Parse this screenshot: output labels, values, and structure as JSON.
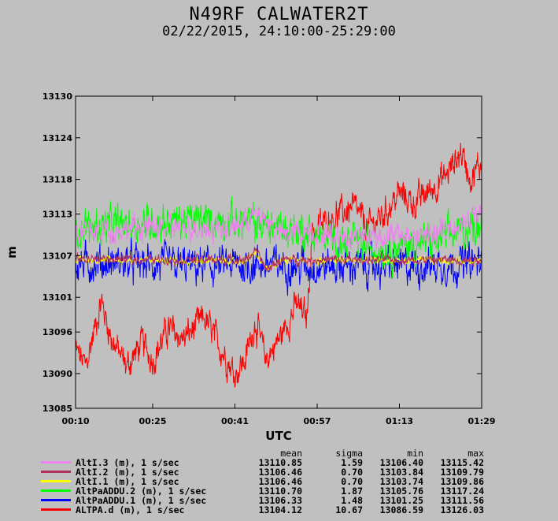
{
  "header": {
    "title": "N49RF CALWATER2T",
    "subtitle": "02/22/2015, 24:10:00-25:29:00"
  },
  "stats_headers": [
    "mean",
    "sigma",
    "min",
    "max"
  ],
  "colors": {
    "background": "#c0c0c0",
    "plot_background": "#c0c0c0"
  },
  "chart_data": {
    "type": "line",
    "title": "N49RF CALWATER2T",
    "subtitle": "02/22/2015, 24:10:00-25:29:00",
    "xlabel": "UTC",
    "ylabel": "m",
    "xlim_minutes": [
      10,
      89
    ],
    "ylim": [
      13085,
      13130
    ],
    "x_ticks": [
      "00:10",
      "00:25",
      "00:41",
      "00:57",
      "01:13",
      "01:29"
    ],
    "y_ticks": [
      "13085",
      "13090",
      "13096",
      "13101",
      "13107",
      "13113",
      "13118",
      "13124",
      "13130"
    ],
    "grid": false,
    "legend_position": "bottom",
    "series": [
      {
        "name": "AltI.3 (m), 1 s/sec",
        "color": "#ee82ee",
        "mean": "13110.85",
        "sigma": "1.59",
        "min": "13106.40",
        "max": "13115.42",
        "profile": [
          [
            10,
            13110.5
          ],
          [
            20,
            13110.8
          ],
          [
            30,
            13111.2
          ],
          [
            40,
            13111.0
          ],
          [
            45,
            13112.8
          ],
          [
            47,
            13112.3
          ],
          [
            50,
            13110.0
          ],
          [
            56,
            13110.8
          ],
          [
            60,
            13109.8
          ],
          [
            70,
            13109.8
          ],
          [
            80,
            13110.0
          ],
          [
            89,
            13113.0
          ]
        ]
      },
      {
        "name": "AltI.2 (m), 1 s/sec",
        "color": "#b03060",
        "mean": "13106.46",
        "sigma": "0.70",
        "min": "13103.84",
        "max": "13109.79",
        "profile": [
          [
            10,
            13106.5
          ],
          [
            43,
            13106.4
          ],
          [
            45,
            13107.8
          ],
          [
            47,
            13105.0
          ],
          [
            50,
            13106.4
          ],
          [
            89,
            13106.4
          ]
        ]
      },
      {
        "name": "AltI.1 (m), 1 s/sec",
        "color": "#ffff00",
        "mean": "13106.46",
        "sigma": "0.70",
        "min": "13103.74",
        "max": "13109.86",
        "profile": [
          [
            10,
            13106.4
          ],
          [
            43,
            13106.3
          ],
          [
            45,
            13107.6
          ],
          [
            47,
            13104.8
          ],
          [
            50,
            13106.3
          ],
          [
            89,
            13106.3
          ]
        ]
      },
      {
        "name": "AltPaADDU.2 (m), 1 s/sec",
        "color": "#00ff00",
        "mean": "13110.70",
        "sigma": "1.87",
        "min": "13105.76",
        "max": "13117.24",
        "profile": [
          [
            10,
            13111.0
          ],
          [
            20,
            13111.5
          ],
          [
            30,
            13112.0
          ],
          [
            40,
            13112.0
          ],
          [
            47,
            13111.5
          ],
          [
            55,
            13110.5
          ],
          [
            60,
            13109.3
          ],
          [
            70,
            13108.0
          ],
          [
            80,
            13109.0
          ],
          [
            89,
            13112.0
          ]
        ]
      },
      {
        "name": "AltPaADDU.1 (m), 1 s/sec",
        "color": "#0000ff",
        "mean": "13106.33",
        "sigma": "1.48",
        "min": "13101.25",
        "max": "13111.56",
        "profile": [
          [
            10,
            13105.8
          ],
          [
            20,
            13106.0
          ],
          [
            30,
            13105.5
          ],
          [
            40,
            13105.5
          ],
          [
            47,
            13105.8
          ],
          [
            55,
            13105.5
          ],
          [
            65,
            13105.6
          ],
          [
            75,
            13105.5
          ],
          [
            89,
            13106.0
          ]
        ]
      },
      {
        "name": "ALTPA.d (m), 1 s/sec",
        "color": "#ff0000",
        "mean": "13104.12",
        "sigma": "10.67",
        "min": "13086.59",
        "max": "13126.03",
        "profile": [
          [
            10,
            13093.5
          ],
          [
            12,
            13091.0
          ],
          [
            15,
            13100.5
          ],
          [
            17,
            13095.0
          ],
          [
            20,
            13091.0
          ],
          [
            23,
            13094.5
          ],
          [
            25,
            13092.0
          ],
          [
            28,
            13096.5
          ],
          [
            31,
            13095.0
          ],
          [
            35,
            13098.0
          ],
          [
            38,
            13094.0
          ],
          [
            41,
            13090.0
          ],
          [
            43,
            13092.0
          ],
          [
            45,
            13097.5
          ],
          [
            47,
            13092.0
          ],
          [
            50,
            13095.5
          ],
          [
            53,
            13100.0
          ],
          [
            55,
            13098.0
          ],
          [
            56,
            13110.5
          ],
          [
            60,
            13112.5
          ],
          [
            64,
            13114.0
          ],
          [
            67,
            13111.0
          ],
          [
            70,
            13113.0
          ],
          [
            73,
            13116.0
          ],
          [
            76,
            13114.5
          ],
          [
            79,
            13116.5
          ],
          [
            82,
            13118.5
          ],
          [
            85,
            13122.0
          ],
          [
            87,
            13118.0
          ],
          [
            89,
            13120.5
          ]
        ]
      }
    ]
  }
}
